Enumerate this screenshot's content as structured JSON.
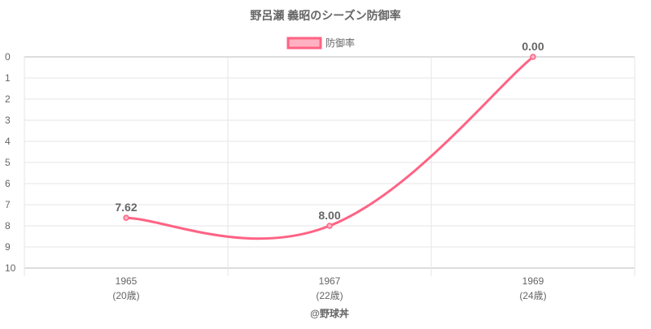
{
  "chart_data": {
    "type": "line",
    "title": "野呂瀬 義昭のシーズン防御率",
    "categories": [
      "1965",
      "1967",
      "1969"
    ],
    "sublabels": [
      "(20歳)",
      "(22歳)",
      "(24歳)"
    ],
    "series": [
      {
        "name": "防御率",
        "values": [
          7.62,
          8.0,
          0.0
        ],
        "labels": [
          "7.62",
          "8.00",
          "0.00"
        ]
      }
    ],
    "ylim": [
      0,
      10
    ],
    "y_reversed": true,
    "yticks": [
      "0",
      "1",
      "2",
      "3",
      "4",
      "5",
      "6",
      "7",
      "8",
      "9",
      "10"
    ],
    "grid": true,
    "legend": "top-center",
    "xlabel": "",
    "ylabel": "",
    "colors": {
      "line": "#ff6384",
      "fill": "#ffb1c1",
      "text": "#666666",
      "grid": "#e5e5e5"
    }
  },
  "footer": "@野球丼"
}
